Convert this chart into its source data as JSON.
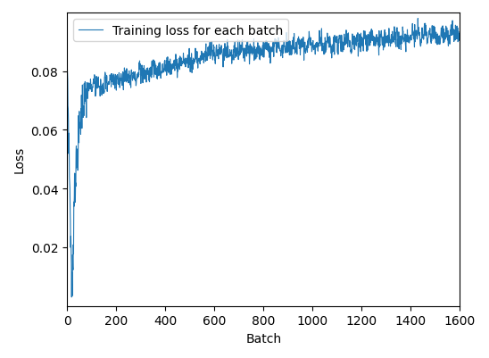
{
  "title": "",
  "xlabel": "Batch",
  "ylabel": "Loss",
  "legend_label": "Training loss for each batch",
  "line_color": "#1f77b4",
  "line_width": 0.8,
  "xlim": [
    0,
    1600
  ],
  "ylim": [
    0,
    0.1
  ],
  "yticks": [
    0.02,
    0.04,
    0.06,
    0.08
  ],
  "xticks": [
    0,
    200,
    400,
    600,
    800,
    1000,
    1200,
    1400,
    1600
  ],
  "figsize": [
    5.48,
    4.02
  ],
  "dpi": 100
}
